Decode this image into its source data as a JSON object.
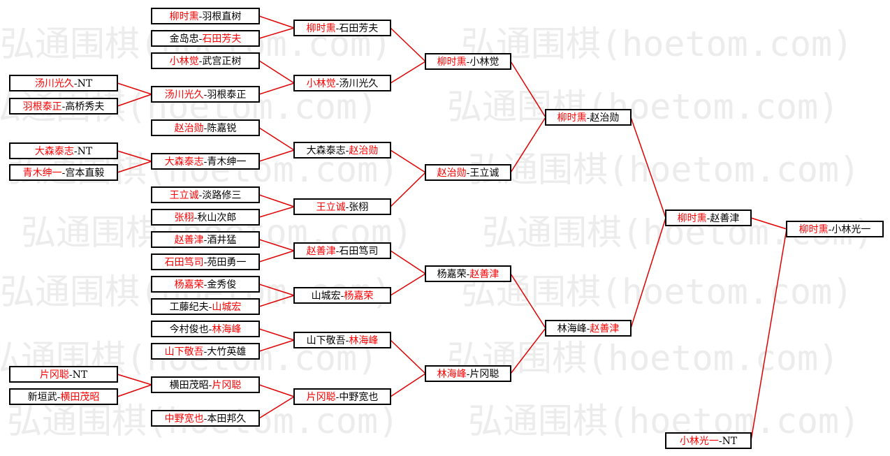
{
  "watermark": "弘通围棋(hoetom.com)",
  "separator": "-",
  "matches": [
    {
      "players": [
        {
          "name": "汤川光久",
          "color": "red"
        },
        {
          "name": "NT",
          "color": "black"
        }
      ]
    },
    {
      "players": [
        {
          "name": "羽根泰正",
          "color": "red"
        },
        {
          "name": "高桥秀夫",
          "color": "black"
        }
      ]
    },
    {
      "players": [
        {
          "name": "大森泰志",
          "color": "red"
        },
        {
          "name": "NT",
          "color": "black"
        }
      ]
    },
    {
      "players": [
        {
          "name": "青木绅一",
          "color": "red"
        },
        {
          "name": "宫本直毅",
          "color": "black"
        }
      ]
    },
    {
      "players": [
        {
          "name": "片冈聪",
          "color": "red"
        },
        {
          "name": "NT",
          "color": "black"
        }
      ]
    },
    {
      "players": [
        {
          "name": "新垣武",
          "color": "black"
        },
        {
          "name": "横田茂昭",
          "color": "red"
        }
      ]
    },
    {
      "players": [
        {
          "name": "柳时熏",
          "color": "red"
        },
        {
          "name": "羽根直树",
          "color": "black"
        }
      ]
    },
    {
      "players": [
        {
          "name": "金岛忠",
          "color": "black"
        },
        {
          "name": "石田芳夫",
          "color": "red"
        }
      ]
    },
    {
      "players": [
        {
          "name": "小林觉",
          "color": "red"
        },
        {
          "name": "武宫正树",
          "color": "black"
        }
      ]
    },
    {
      "players": [
        {
          "name": "汤川光久",
          "color": "red"
        },
        {
          "name": "羽根泰正",
          "color": "black"
        }
      ]
    },
    {
      "players": [
        {
          "name": "赵治勋",
          "color": "red"
        },
        {
          "name": "陈嘉锐",
          "color": "black"
        }
      ]
    },
    {
      "players": [
        {
          "name": "大森泰志",
          "color": "red"
        },
        {
          "name": "青木绅一",
          "color": "black"
        }
      ]
    },
    {
      "players": [
        {
          "name": "王立诚",
          "color": "red"
        },
        {
          "name": "淡路修三",
          "color": "black"
        }
      ]
    },
    {
      "players": [
        {
          "name": "张栩",
          "color": "red"
        },
        {
          "name": "秋山次郎",
          "color": "black"
        }
      ]
    },
    {
      "players": [
        {
          "name": "赵善津",
          "color": "red"
        },
        {
          "name": "酒井猛",
          "color": "black"
        }
      ]
    },
    {
      "players": [
        {
          "name": "石田笃司",
          "color": "red"
        },
        {
          "name": "苑田勇一",
          "color": "black"
        }
      ]
    },
    {
      "players": [
        {
          "name": "杨嘉荣",
          "color": "red"
        },
        {
          "name": "金秀俊",
          "color": "black"
        }
      ]
    },
    {
      "players": [
        {
          "name": "工藤纪夫",
          "color": "black"
        },
        {
          "name": "山城宏",
          "color": "red"
        }
      ]
    },
    {
      "players": [
        {
          "name": "今村俊也",
          "color": "black"
        },
        {
          "name": "林海峰",
          "color": "red"
        }
      ]
    },
    {
      "players": [
        {
          "name": "山下敬吾",
          "color": "red"
        },
        {
          "name": "大竹英雄",
          "color": "black"
        }
      ]
    },
    {
      "players": [
        {
          "name": "横田茂昭",
          "color": "black"
        },
        {
          "name": "片冈聪",
          "color": "red"
        }
      ]
    },
    {
      "players": [
        {
          "name": "中野宽也",
          "color": "red"
        },
        {
          "name": "本田邦久",
          "color": "black"
        }
      ]
    },
    {
      "players": [
        {
          "name": "柳时熏",
          "color": "red"
        },
        {
          "name": "石田芳夫",
          "color": "black"
        }
      ]
    },
    {
      "players": [
        {
          "name": "小林觉",
          "color": "red"
        },
        {
          "name": "汤川光久",
          "color": "black"
        }
      ]
    },
    {
      "players": [
        {
          "name": "大森泰志",
          "color": "black"
        },
        {
          "name": "赵治勋",
          "color": "red"
        }
      ]
    },
    {
      "players": [
        {
          "name": "王立诚",
          "color": "red"
        },
        {
          "name": "张栩",
          "color": "black"
        }
      ]
    },
    {
      "players": [
        {
          "name": "赵善津",
          "color": "red"
        },
        {
          "name": "石田笃司",
          "color": "black"
        }
      ]
    },
    {
      "players": [
        {
          "name": "山城宏",
          "color": "black"
        },
        {
          "name": "杨嘉荣",
          "color": "red"
        }
      ]
    },
    {
      "players": [
        {
          "name": "山下敬吾",
          "color": "black"
        },
        {
          "name": "林海峰",
          "color": "red"
        }
      ]
    },
    {
      "players": [
        {
          "name": "片冈聪",
          "color": "red"
        },
        {
          "name": "中野宽也",
          "color": "black"
        }
      ]
    },
    {
      "players": [
        {
          "name": "柳时熏",
          "color": "red"
        },
        {
          "name": "小林觉",
          "color": "black"
        }
      ]
    },
    {
      "players": [
        {
          "name": "赵治勋",
          "color": "red"
        },
        {
          "name": "王立诚",
          "color": "black"
        }
      ]
    },
    {
      "players": [
        {
          "name": "杨嘉荣",
          "color": "black"
        },
        {
          "name": "赵善津",
          "color": "red"
        }
      ]
    },
    {
      "players": [
        {
          "name": "林海峰",
          "color": "red"
        },
        {
          "name": "片冈聪",
          "color": "black"
        }
      ]
    },
    {
      "players": [
        {
          "name": "柳时熏",
          "color": "red"
        },
        {
          "name": "赵治勋",
          "color": "black"
        }
      ]
    },
    {
      "players": [
        {
          "name": "林海峰",
          "color": "black"
        },
        {
          "name": "赵善津",
          "color": "red"
        }
      ]
    },
    {
      "players": [
        {
          "name": "柳时熏",
          "color": "red"
        },
        {
          "name": "赵善津",
          "color": "black"
        }
      ]
    },
    {
      "players": [
        {
          "name": "小林光一",
          "color": "red"
        },
        {
          "name": "NT",
          "color": "black"
        }
      ]
    },
    {
      "players": [
        {
          "name": "柳时熏",
          "color": "red"
        },
        {
          "name": "小林光一",
          "color": "black"
        }
      ]
    }
  ]
}
